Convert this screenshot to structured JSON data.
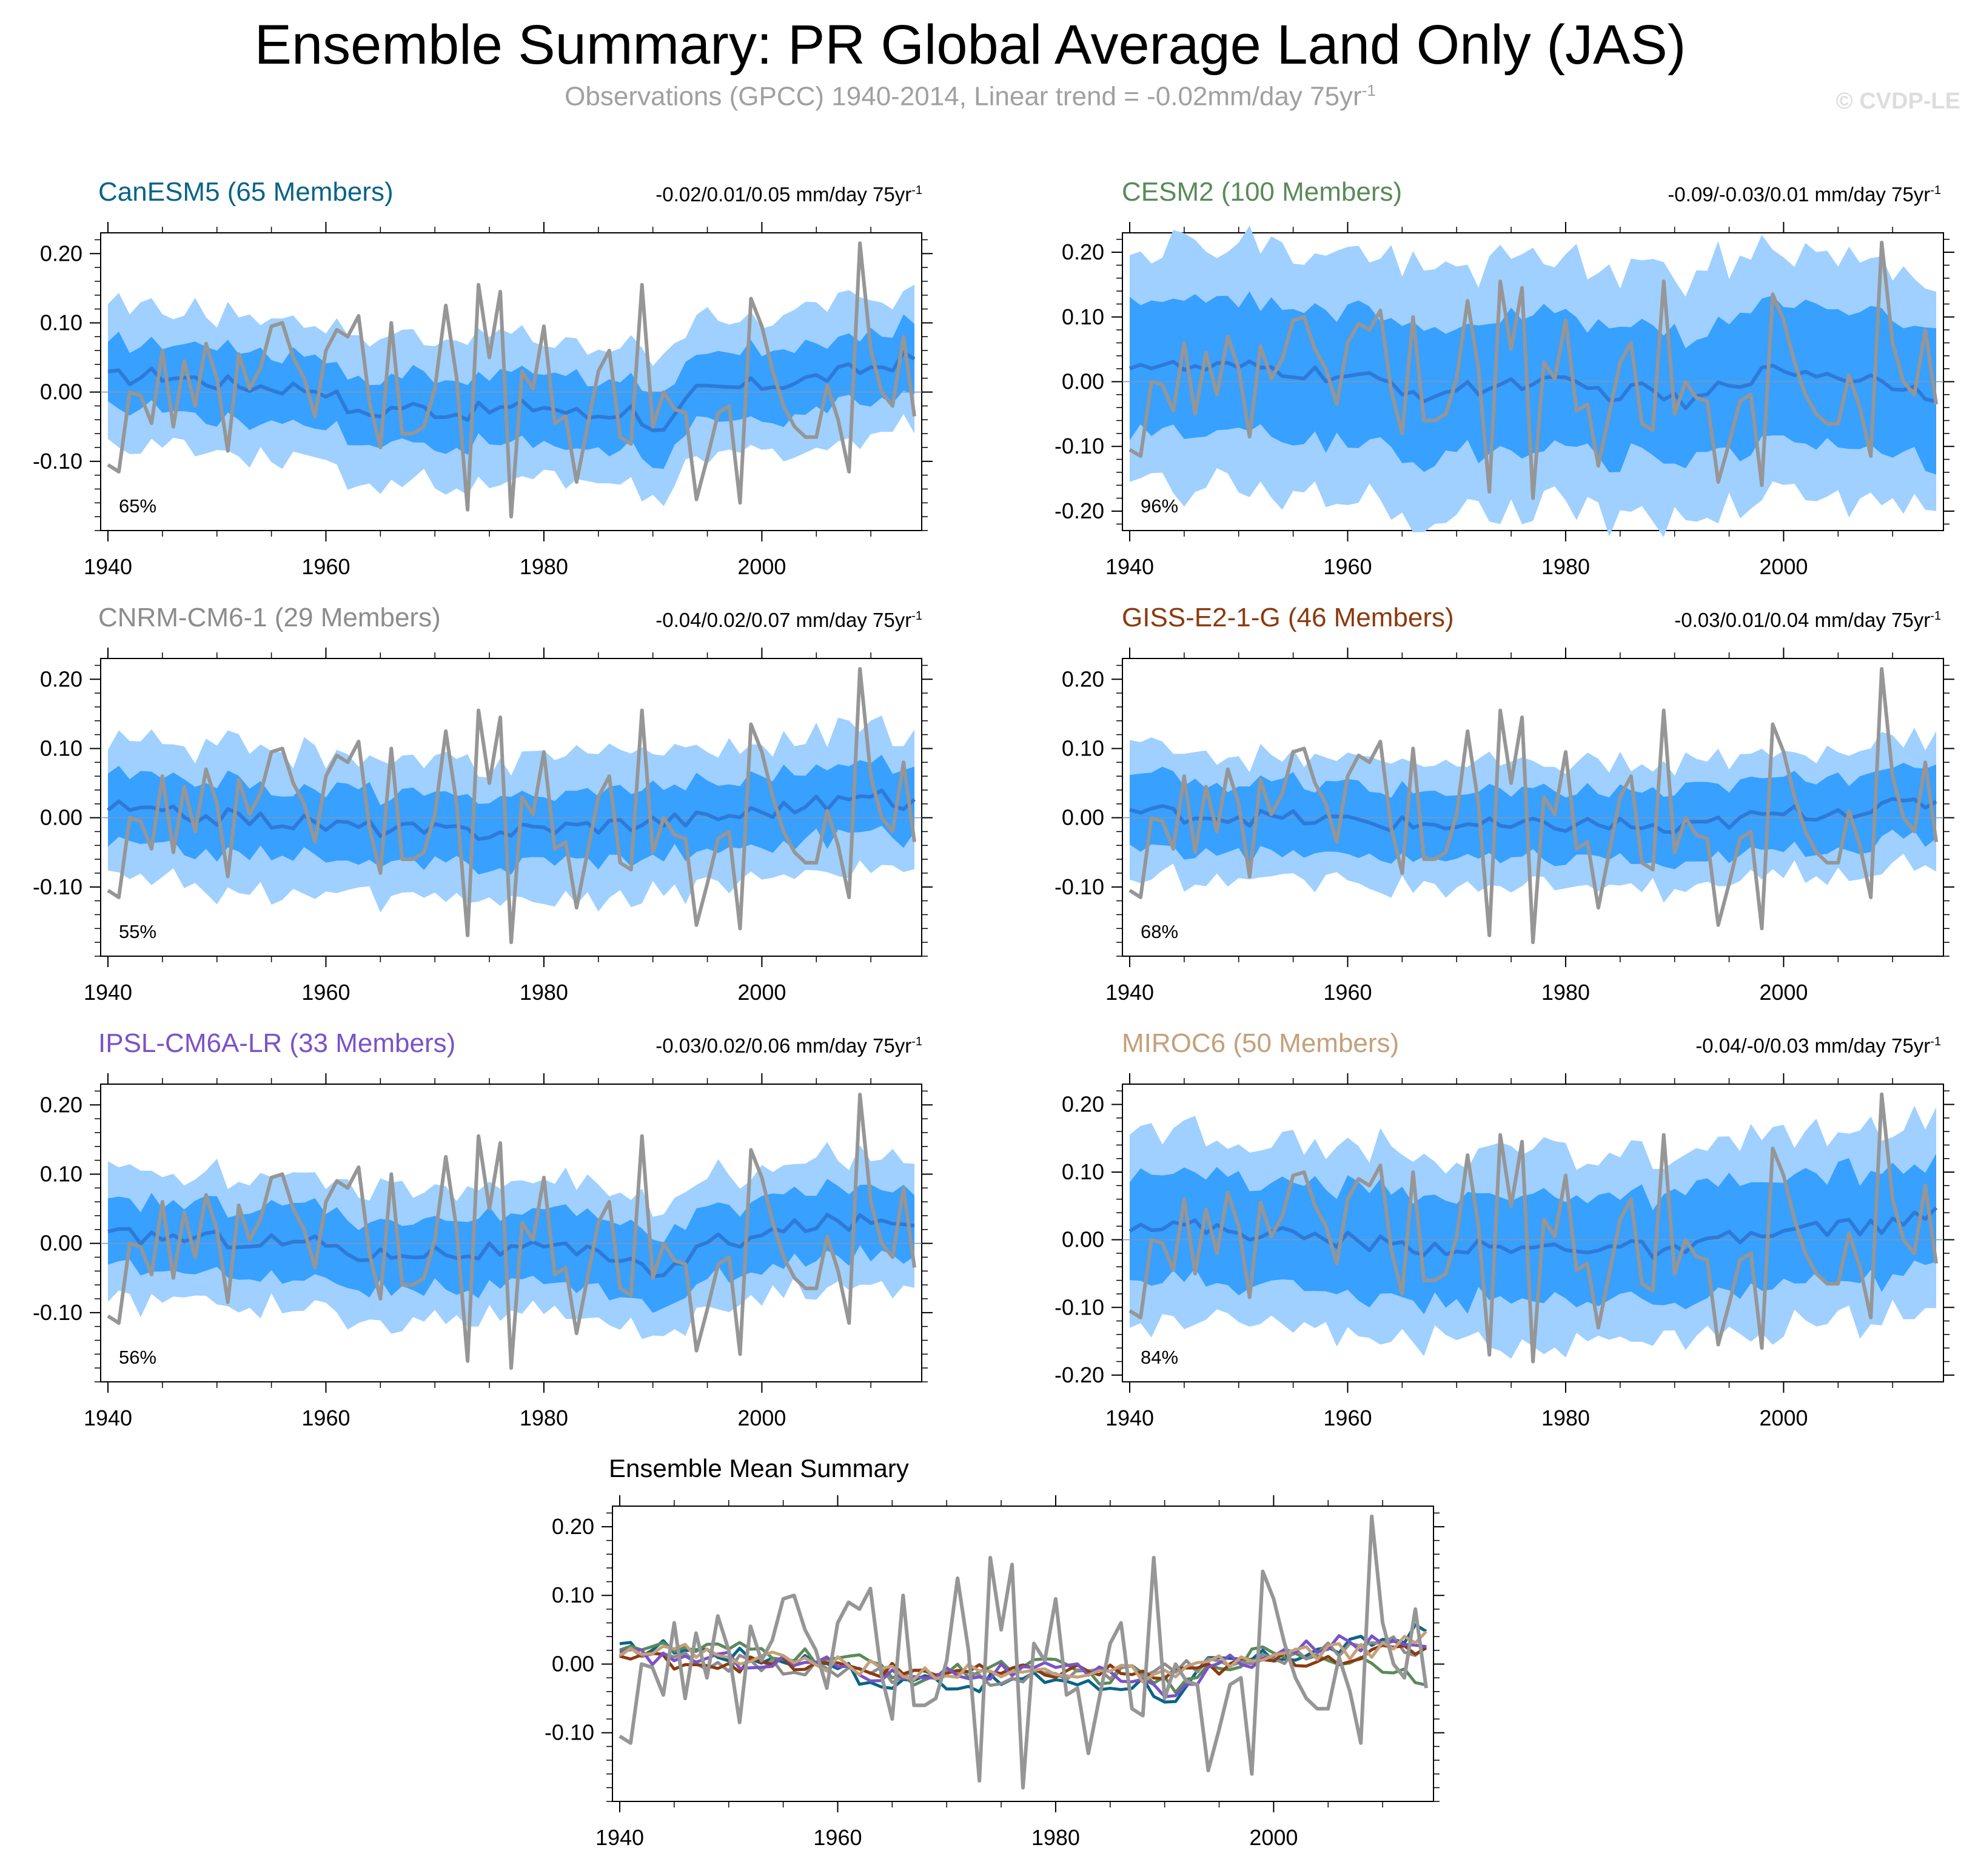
{
  "header": {
    "title": "Ensemble Summary: PR Global Average Land Only (JAS)",
    "subtitle_main": "Observations (GPCC) 1940-2014, Linear trend = -0.02mm/day 75yr",
    "subtitle_sup": "-1",
    "watermark": "© CVDP-LE"
  },
  "colors": {
    "outer_band": "#9fd0ff",
    "inner_band": "#38a0ff",
    "ensemble_mean": "#2e7ad6",
    "observations": "#969696"
  },
  "chart_data": [
    {
      "type": "area",
      "id": "canesm5",
      "title": "CanESM5 (65 Members)",
      "title_color": "#086488",
      "trend_label": "-0.02/0.01/0.05 mm/day 75yr",
      "percent_label": "65%",
      "xlim": [
        1940,
        2014
      ],
      "ylim": [
        -0.2,
        0.23
      ],
      "yticks": [
        -0.1,
        0.0,
        0.1,
        0.2
      ],
      "ytick_labels": [
        "-0.10",
        "0.00",
        "0.10",
        "0.20"
      ],
      "xticks": [
        1940,
        1960,
        1980,
        2000
      ],
      "xtick_labels": [
        "1940",
        "1960",
        "1980",
        "2000"
      ],
      "mean_nodes": [
        [
          1940,
          0.02
        ],
        [
          1945,
          0.025
        ],
        [
          1952,
          0.01
        ],
        [
          1960,
          0.005
        ],
        [
          1963,
          -0.035
        ],
        [
          1967,
          -0.02
        ],
        [
          1972,
          -0.03
        ],
        [
          1976,
          -0.025
        ],
        [
          1980,
          -0.02
        ],
        [
          1984,
          -0.035
        ],
        [
          1988,
          -0.025
        ],
        [
          1991,
          -0.06
        ],
        [
          1994,
          0.0
        ],
        [
          2000,
          0.01
        ],
        [
          2005,
          0.02
        ],
        [
          2010,
          0.035
        ],
        [
          2014,
          0.05
        ]
      ],
      "inner_half": 0.05,
      "outer_half": 0.1
    },
    {
      "type": "area",
      "id": "cesm2",
      "title": "CESM2 (100 Members)",
      "title_color": "#5a8a5a",
      "trend_label": "-0.09/-0.03/0.01 mm/day 75yr",
      "percent_label": "96%",
      "xlim": [
        1940,
        2014
      ],
      "ylim": [
        -0.23,
        0.23
      ],
      "yticks": [
        -0.2,
        -0.1,
        0.0,
        0.1,
        0.2
      ],
      "ytick_labels": [
        "-0.20",
        "-0.10",
        "0.00",
        "0.10",
        "0.20"
      ],
      "xticks": [
        1940,
        1960,
        1980,
        2000
      ],
      "xtick_labels": [
        "1940",
        "1960",
        "1980",
        "2000"
      ],
      "mean_nodes": [
        [
          1940,
          0.03
        ],
        [
          1945,
          0.02
        ],
        [
          1952,
          0.02
        ],
        [
          1958,
          0.01
        ],
        [
          1963,
          0.0
        ],
        [
          1967,
          -0.02
        ],
        [
          1972,
          -0.01
        ],
        [
          1976,
          0.0
        ],
        [
          1980,
          -0.005
        ],
        [
          1985,
          -0.02
        ],
        [
          1988,
          -0.01
        ],
        [
          1991,
          -0.04
        ],
        [
          1995,
          0.0
        ],
        [
          2000,
          0.02
        ],
        [
          2005,
          0.01
        ],
        [
          2010,
          0.0
        ],
        [
          2014,
          -0.02
        ]
      ],
      "inner_half": 0.1,
      "outer_half": 0.19
    },
    {
      "type": "area",
      "id": "cnrm",
      "title": "CNRM-CM6-1 (29 Members)",
      "title_color": "#8c8c8c",
      "trend_label": "-0.04/0.02/0.07 mm/day 75yr",
      "percent_label": "55%",
      "xlim": [
        1940,
        2014
      ],
      "ylim": [
        -0.2,
        0.23
      ],
      "yticks": [
        -0.1,
        0.0,
        0.1,
        0.2
      ],
      "ytick_labels": [
        "-0.10",
        "0.00",
        "0.10",
        "0.20"
      ],
      "xticks": [
        1940,
        1960,
        1980,
        2000
      ],
      "xtick_labels": [
        "1940",
        "1960",
        "1980",
        "2000"
      ],
      "mean_nodes": [
        [
          1940,
          0.015
        ],
        [
          1945,
          0.005
        ],
        [
          1952,
          0.0
        ],
        [
          1960,
          -0.01
        ],
        [
          1965,
          -0.015
        ],
        [
          1970,
          -0.02
        ],
        [
          1975,
          -0.02
        ],
        [
          1980,
          -0.015
        ],
        [
          1985,
          -0.01
        ],
        [
          1990,
          -0.005
        ],
        [
          1995,
          0.0
        ],
        [
          2000,
          0.01
        ],
        [
          2005,
          0.02
        ],
        [
          2010,
          0.03
        ],
        [
          2014,
          0.02
        ]
      ],
      "inner_half": 0.05,
      "outer_half": 0.1
    },
    {
      "type": "area",
      "id": "giss",
      "title": "GISS-E2-1-G (46 Members)",
      "title_color": "#8b3a0e",
      "trend_label": "-0.03/0.01/0.04 mm/day 75yr",
      "percent_label": "68%",
      "xlim": [
        1940,
        2014
      ],
      "ylim": [
        -0.2,
        0.23
      ],
      "yticks": [
        -0.1,
        0.0,
        0.1,
        0.2
      ],
      "ytick_labels": [
        "-0.10",
        "0.00",
        "0.10",
        "0.20"
      ],
      "xticks": [
        1940,
        1960,
        1980,
        2000
      ],
      "xtick_labels": [
        "1940",
        "1960",
        "1980",
        "2000"
      ],
      "mean_nodes": [
        [
          1940,
          0.01
        ],
        [
          1945,
          0.005
        ],
        [
          1952,
          0.0
        ],
        [
          1960,
          -0.005
        ],
        [
          1965,
          -0.01
        ],
        [
          1970,
          -0.01
        ],
        [
          1975,
          -0.015
        ],
        [
          1980,
          -0.01
        ],
        [
          1985,
          -0.01
        ],
        [
          1990,
          -0.02
        ],
        [
          1995,
          -0.005
        ],
        [
          2000,
          0.005
        ],
        [
          2005,
          0.01
        ],
        [
          2010,
          0.015
        ],
        [
          2014,
          0.025
        ]
      ],
      "inner_half": 0.05,
      "outer_half": 0.09
    },
    {
      "type": "area",
      "id": "ipsl",
      "title": "IPSL-CM6A-LR (33 Members)",
      "title_color": "#7b52c8",
      "trend_label": "-0.03/0.02/0.06 mm/day 75yr",
      "percent_label": "56%",
      "xlim": [
        1940,
        2014
      ],
      "ylim": [
        -0.2,
        0.23
      ],
      "yticks": [
        -0.1,
        0.0,
        0.1,
        0.2
      ],
      "ytick_labels": [
        "-0.10",
        "0.00",
        "0.10",
        "0.20"
      ],
      "xticks": [
        1940,
        1960,
        1980,
        2000
      ],
      "xtick_labels": [
        "1940",
        "1960",
        "1980",
        "2000"
      ],
      "mean_nodes": [
        [
          1940,
          0.01
        ],
        [
          1945,
          0.01
        ],
        [
          1952,
          0.005
        ],
        [
          1960,
          0.0
        ],
        [
          1964,
          -0.02
        ],
        [
          1968,
          -0.01
        ],
        [
          1972,
          -0.015
        ],
        [
          1976,
          -0.01
        ],
        [
          1980,
          -0.01
        ],
        [
          1985,
          -0.015
        ],
        [
          1988,
          -0.02
        ],
        [
          1991,
          -0.05
        ],
        [
          1995,
          0.0
        ],
        [
          2000,
          0.01
        ],
        [
          2005,
          0.03
        ],
        [
          2010,
          0.03
        ],
        [
          2014,
          0.035
        ]
      ],
      "inner_half": 0.05,
      "outer_half": 0.095
    },
    {
      "type": "area",
      "id": "miroc6",
      "title": "MIROC6 (50 Members)",
      "title_color": "#c4a07a",
      "trend_label": "-0.04/-0/0.03 mm/day 75yr",
      "percent_label": "84%",
      "xlim": [
        1940,
        2014
      ],
      "ylim": [
        -0.21,
        0.23
      ],
      "yticks": [
        -0.2,
        -0.1,
        0.0,
        0.1,
        0.2
      ],
      "ytick_labels": [
        "-0.20",
        "-0.10",
        "0.00",
        "0.10",
        "0.20"
      ],
      "xticks": [
        1940,
        1960,
        1980,
        2000
      ],
      "xtick_labels": [
        "1940",
        "1960",
        "1980",
        "2000"
      ],
      "mean_nodes": [
        [
          1940,
          0.025
        ],
        [
          1945,
          0.02
        ],
        [
          1952,
          0.01
        ],
        [
          1960,
          0.0
        ],
        [
          1965,
          -0.01
        ],
        [
          1970,
          -0.01
        ],
        [
          1975,
          -0.015
        ],
        [
          1980,
          -0.01
        ],
        [
          1985,
          -0.01
        ],
        [
          1990,
          -0.02
        ],
        [
          1995,
          0.0
        ],
        [
          2000,
          0.01
        ],
        [
          2005,
          0.02
        ],
        [
          2010,
          0.02
        ],
        [
          2014,
          0.04
        ]
      ],
      "inner_half": 0.08,
      "outer_half": 0.14
    },
    {
      "type": "line",
      "id": "ensemble-mean-summary",
      "title": "Ensemble Mean Summary",
      "title_color": "#000000",
      "xlim": [
        1940,
        2014
      ],
      "ylim": [
        -0.2,
        0.23
      ],
      "yticks": [
        -0.1,
        0.0,
        0.1,
        0.2
      ],
      "ytick_labels": [
        "-0.10",
        "0.00",
        "0.10",
        "0.20"
      ],
      "xticks": [
        1940,
        1960,
        1980,
        2000
      ],
      "xtick_labels": [
        "1940",
        "1960",
        "1980",
        "2000"
      ],
      "series": [
        {
          "name": "CanESM5",
          "color": "#086488",
          "source": "canesm5"
        },
        {
          "name": "CESM2",
          "color": "#5a8a5a",
          "source": "cesm2"
        },
        {
          "name": "CNRM-CM6-1",
          "color": "#8c8c8c",
          "source": "cnrm"
        },
        {
          "name": "GISS-E2-1-G",
          "color": "#8b3a0e",
          "source": "giss"
        },
        {
          "name": "IPSL-CM6A-LR",
          "color": "#7b52c8",
          "source": "ipsl"
        },
        {
          "name": "MIROC6",
          "color": "#c4a07a",
          "source": "miroc6"
        }
      ]
    }
  ],
  "observations": {
    "name": "GPCC",
    "x_start": 1940,
    "values": [
      -0.105,
      -0.115,
      0.0,
      -0.005,
      -0.045,
      0.06,
      -0.05,
      0.045,
      -0.02,
      0.07,
      0.02,
      -0.085,
      0.055,
      0.005,
      0.035,
      0.095,
      0.1,
      0.05,
      0.02,
      -0.035,
      0.06,
      0.09,
      0.08,
      0.11,
      -0.015,
      -0.08,
      0.1,
      -0.06,
      -0.06,
      -0.05,
      0.005,
      0.125,
      0.02,
      -0.17,
      0.155,
      0.05,
      0.145,
      -0.18,
      0.03,
      0.005,
      0.095,
      -0.045,
      -0.035,
      -0.13,
      -0.05,
      0.03,
      0.06,
      -0.065,
      -0.075,
      0.155,
      -0.05,
      0.0,
      -0.025,
      -0.03,
      -0.155,
      -0.095,
      -0.03,
      -0.02,
      -0.16,
      0.135,
      0.095,
      0.03,
      -0.02,
      -0.05,
      -0.065,
      -0.065,
      0.01,
      -0.04,
      -0.115,
      0.215,
      0.06,
      0.0,
      -0.02,
      0.08,
      -0.035
    ]
  }
}
